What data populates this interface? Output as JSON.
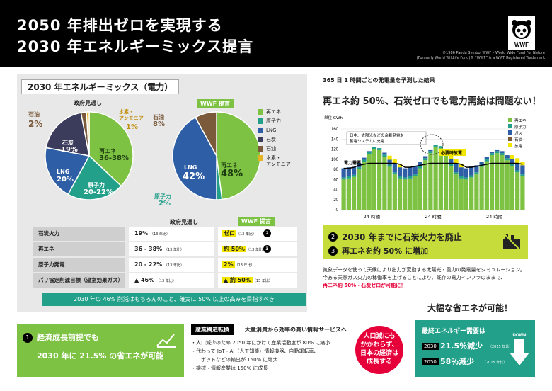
{
  "header": {
    "title_line1": "2050 年排出ゼロを実現する",
    "title_line2": "2030 年エネルギーミックス提言",
    "copyright_line1": "©1986 Panda Symbol WWF – World Wide Fund For Nature",
    "copyright_line2": "(Formerly World Wildlife Fund)® “WWF” is a WWF Registered Trademark",
    "logo_text": "WWF"
  },
  "left_panel": {
    "title": "2030 年エネルギーミックス（電力）",
    "gov_pie": {
      "label": "政府見通し",
      "slices": [
        {
          "name": "再エネ",
          "value_text": "36-38%",
          "share": 37
        },
        {
          "name": "原子力",
          "value_text": "20-22%",
          "share": 21
        },
        {
          "name": "LNG",
          "value_text": "20%",
          "share": 20
        },
        {
          "name": "石炭",
          "value_text": "19%",
          "share": 19
        },
        {
          "name": "石油",
          "value_text": "2%",
          "share": 2
        },
        {
          "name": "水素・アンモニア",
          "value_text": "1%",
          "share": 1
        }
      ],
      "label_oil": "石油",
      "label_oil_val": "2%",
      "label_h2": "水素・\nアンモニア",
      "label_h2_val": "1%",
      "label_coal": "石炭",
      "label_coal_val": "19%",
      "label_lng": "LNG",
      "label_lng_val": "20%",
      "label_nuc": "原子力",
      "label_nuc_val": "20-22%",
      "label_re": "再エネ",
      "label_re_val": "36-38%"
    },
    "wwf_pie": {
      "label": "WWF 提言",
      "slices": [
        {
          "name": "再エネ",
          "value_text": "48%",
          "share": 48
        },
        {
          "name": "原子力",
          "value_text": "2%",
          "share": 2
        },
        {
          "name": "LNG",
          "value_text": "42%",
          "share": 42
        },
        {
          "name": "石油",
          "value_text": "8%",
          "share": 8
        }
      ],
      "label_oil": "石油",
      "label_oil_val": "8%",
      "label_lng": "LNG",
      "label_lng_val": "42%",
      "label_re": "再エネ",
      "label_re_val": "48%",
      "label_nuc": "原子力",
      "label_nuc_val": "2%"
    },
    "legend": [
      {
        "name": "再エネ",
        "color": "#7dc242"
      },
      {
        "name": "原子力",
        "color": "#22a08a"
      },
      {
        "name": "LNG",
        "color": "#2e5fa6"
      },
      {
        "name": "石炭",
        "color": "#3b3b5c"
      },
      {
        "name": "石油",
        "color": "#7a5a3b"
      },
      {
        "name": "水素・\nアンモニア",
        "color": "#e6b422"
      }
    ],
    "table": {
      "col_gov": "政府見通し",
      "col_wwf": "WWF 提言",
      "rows": [
        {
          "label": "石炭火力",
          "gov": "19%",
          "gov_note": "（13 年比）",
          "wwf": "ゼロ",
          "wwf_note": "（13 年比）",
          "badge": "2"
        },
        {
          "label": "再エネ",
          "gov": "36 - 38%",
          "gov_note": "（13 年比）",
          "wwf": "約 50%",
          "wwf_note": "（13 年比）",
          "badge": "3"
        },
        {
          "label": "原子力発電",
          "gov": "20 - 22%",
          "gov_note": "（13 年比）",
          "wwf": "2%",
          "wwf_note": "（13 年比）",
          "badge": ""
        },
        {
          "label": "パリ協定削減目標（温室効果ガス）",
          "gov": "▲ 46%",
          "gov_note": "（13 年比）",
          "wwf": "▲ 約 50%",
          "wwf_note": "（13 年比）",
          "badge": ""
        }
      ]
    },
    "banner": "2030 年の 46% 削減はもちろんのこと、確実に 50% 以上の高みを目指すべき"
  },
  "right_panel": {
    "subtitle": "365 日 1 時間ごとの発電量を予測した結果",
    "title": "再エネ約 50%、石炭ゼロでも電力需給は問題ない！",
    "chart_data": {
      "type": "bar",
      "ylabel": "単位\nGWh",
      "ylim": [
        0,
        160
      ],
      "yticks": [
        0,
        20,
        40,
        60,
        80,
        100,
        120,
        140,
        160
      ],
      "xlabels": [
        "24 時間",
        "24 時間",
        "24 時間"
      ],
      "legend": [
        "再エネ",
        "原子力",
        "ガス",
        "石油",
        "放電"
      ],
      "annotation1": "日中、太陽光などの余剰発電を\n蓄電システムに充電",
      "annotation2": "必要時放電",
      "annotation3": "電力需要",
      "series": [
        {
          "name": "再エネ",
          "values": [
            60,
            62,
            65,
            80,
            95,
            110,
            120,
            118,
            105,
            85,
            70,
            62,
            60,
            62,
            66,
            82,
            98,
            112,
            125,
            122,
            108,
            86,
            70,
            62,
            60,
            64,
            70,
            85,
            96,
            108,
            112,
            108,
            98,
            86,
            74,
            66
          ]
        },
        {
          "name": "原子力",
          "values": [
            4,
            4,
            4,
            4,
            4,
            4,
            4,
            4,
            4,
            4,
            4,
            4,
            4,
            4,
            4,
            4,
            4,
            4,
            4,
            4,
            4,
            4,
            4,
            4,
            4,
            4,
            4,
            4,
            4,
            4,
            4,
            4,
            4,
            4,
            4,
            4
          ]
        },
        {
          "name": "ガス",
          "values": [
            18,
            18,
            16,
            8,
            4,
            2,
            0,
            0,
            4,
            10,
            16,
            18,
            18,
            18,
            16,
            8,
            4,
            2,
            0,
            0,
            4,
            10,
            16,
            18,
            18,
            18,
            14,
            6,
            4,
            2,
            2,
            4,
            6,
            10,
            14,
            18
          ]
        },
        {
          "name": "石油",
          "values": [
            0,
            0,
            0,
            0,
            0,
            0,
            0,
            0,
            0,
            0,
            0,
            0,
            0,
            0,
            0,
            0,
            0,
            0,
            0,
            0,
            0,
            0,
            0,
            0,
            0,
            0,
            0,
            0,
            0,
            0,
            0,
            0,
            0,
            0,
            0,
            0
          ]
        },
        {
          "name": "放電",
          "values": [
            0,
            0,
            0,
            0,
            0,
            0,
            0,
            0,
            0,
            8,
            10,
            6,
            0,
            0,
            0,
            0,
            0,
            0,
            0,
            0,
            0,
            8,
            10,
            6,
            0,
            0,
            0,
            0,
            0,
            0,
            0,
            0,
            0,
            8,
            10,
            6
          ]
        }
      ],
      "demand": [
        82,
        82,
        84,
        88,
        90,
        92,
        92,
        92,
        92,
        92,
        92,
        90,
        84,
        84,
        86,
        88,
        90,
        92,
        92,
        92,
        92,
        92,
        92,
        90,
        84,
        84,
        86,
        88,
        90,
        92,
        92,
        92,
        92,
        92,
        92,
        90
      ]
    },
    "banner_line1": "2030 年までに石炭火力を廃止",
    "banner_line2": "再エネを約 50% に増加",
    "badge1": "2",
    "badge2": "3",
    "desc_line1": "気象データを使って天候により出力が変動する太陽光・風力の発電量をシミュレーション。",
    "desc_line2": "今ある天然ガス火力の稼働率を上げることにより、既存の電力インフラのままで、",
    "desc_line3": "再エネ約 50%・石炭ゼロが可能に！"
  },
  "bottom": {
    "left_badge": "1",
    "left_line1": "経済成長前提でも",
    "left_line2": "2030 年に 21.5% の省エネが可能",
    "mid_tag": "産業構造転換",
    "mid_title": "大量消費から効率の高い情報サービスへ",
    "mid_items": [
      "・人口減少のため 2050 年にかけて産業活動度が 80% に縮小",
      "・代わって IoT・AI（人工知能）情報機器、自動運転車、",
      "　ロボットなどの輸出が 150% に増大",
      "・機械・情報産業は 150% に成長"
    ],
    "circle_text": "人口減にも\nかかわらず、\n日本の経済は\n成長する",
    "right_heading": "大幅な省エネが可能！",
    "right_title": "最終エネルギー需要は",
    "year1": "2030",
    "val1": "21.5％減少",
    "note1": "（2015 年比）",
    "year2": "2050",
    "val2": "58％減少",
    "note2": "（2015 年比）",
    "down": "DOWN"
  }
}
